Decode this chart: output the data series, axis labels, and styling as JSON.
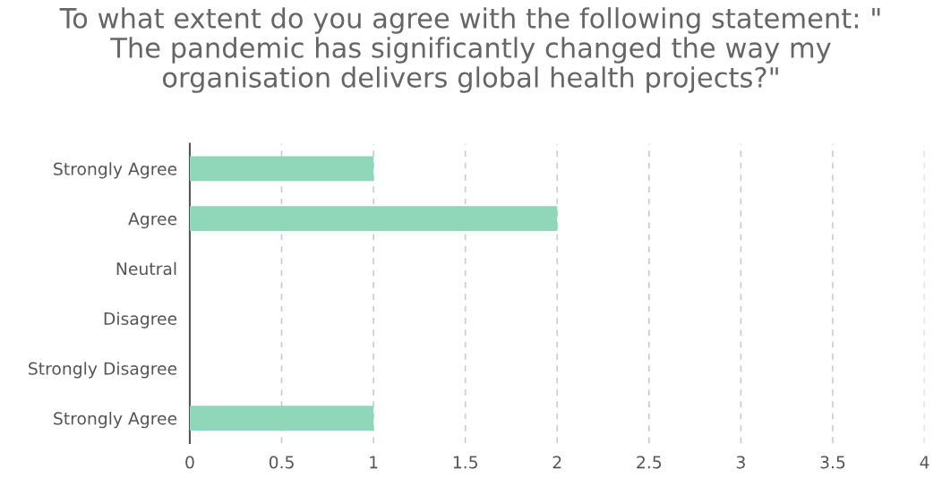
{
  "chart_data": {
    "type": "bar",
    "orientation": "horizontal",
    "title": "To what extent do you agree with the following statement: \"\nThe pandemic has significantly changed the way my\norganisation delivers global health projects?\"",
    "categories": [
      "Strongly Agree",
      "Agree",
      "Neutral",
      "Disagree",
      "Strongly Disagree",
      "Strongly Agree"
    ],
    "values": [
      1,
      2,
      0,
      0,
      0,
      1
    ],
    "color": "#8fd7b8",
    "xlim": [
      0,
      4
    ],
    "xticks": [
      0,
      0.5,
      1,
      1.5,
      2,
      2.5,
      3,
      3.5,
      4
    ],
    "grid": "x",
    "legend": false
  }
}
